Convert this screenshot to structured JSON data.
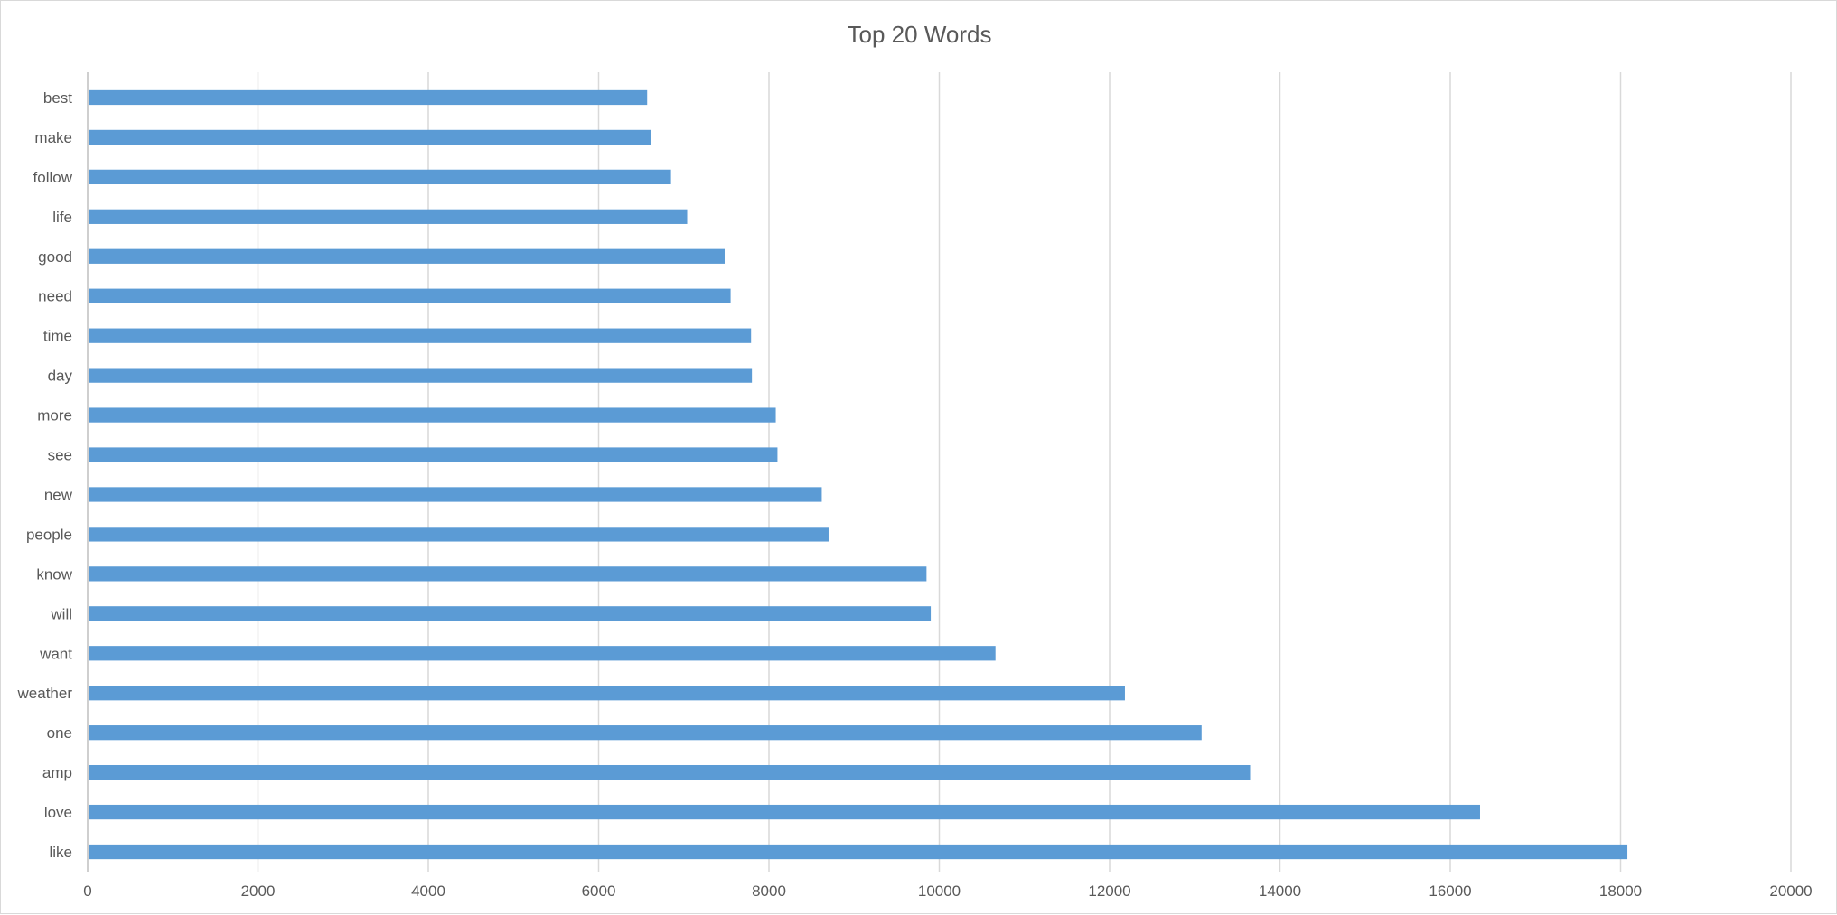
{
  "chart_data": {
    "type": "bar",
    "orientation": "horizontal",
    "title": "Top 20 Words",
    "xlabel": "",
    "ylabel": "",
    "categories": [
      "like",
      "love",
      "amp",
      "one",
      "weather",
      "want",
      "will",
      "know",
      "people",
      "new",
      "see",
      "more",
      "day",
      "time",
      "need",
      "good",
      "life",
      "follow",
      "make",
      "best"
    ],
    "values": [
      18080,
      16350,
      13650,
      13080,
      12180,
      10660,
      9900,
      9850,
      8700,
      8620,
      8100,
      8080,
      7800,
      7790,
      7550,
      7480,
      7040,
      6850,
      6610,
      6570
    ],
    "xlim": [
      0,
      20000
    ],
    "x_ticks": [
      "0",
      "2000",
      "4000",
      "6000",
      "8000",
      "10000",
      "12000",
      "14000",
      "16000",
      "18000",
      "20000"
    ],
    "grid": "vertical",
    "legend": "none",
    "colors": {
      "bar": "#5b9bd5",
      "grid": "#d9d9d9",
      "axis": "#bfbfbf",
      "text": "#595959"
    }
  }
}
